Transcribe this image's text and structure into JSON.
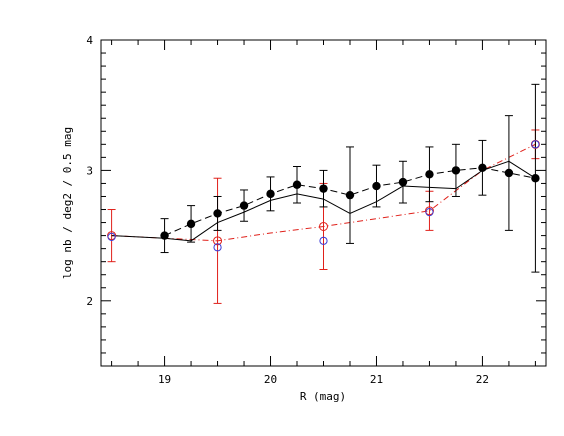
{
  "chart_data": {
    "type": "scatter",
    "title": "",
    "xlabel": "R (mag)",
    "ylabel": "log nb / deg2 / 0.5 mag",
    "xlim": [
      18.4,
      22.6
    ],
    "ylim": [
      1.5,
      4.0
    ],
    "x_ticks": [
      19,
      20,
      21,
      22
    ],
    "y_ticks": [
      2,
      3,
      4
    ],
    "grid": false,
    "colors": {
      "black": "#000000",
      "red": "#e0201a",
      "blue": "#3b3bd6"
    },
    "series": [
      {
        "style": "black filled circles, dashed line, error bars",
        "x": [
          19.0,
          19.25,
          19.5,
          19.75,
          20.0,
          20.25,
          20.5,
          20.75,
          21.0,
          21.25,
          21.5,
          21.75,
          22.0,
          22.25,
          22.5
        ],
        "y": [
          2.5,
          2.59,
          2.67,
          2.73,
          2.82,
          2.89,
          2.86,
          2.81,
          2.88,
          2.91,
          2.97,
          3.0,
          3.02,
          2.98,
          2.94
        ],
        "yerr": [
          0.13,
          0.14,
          0.13,
          0.12,
          0.13,
          0.14,
          0.14,
          0.37,
          0.16,
          0.16,
          0.21,
          0.2,
          0.21,
          0.44,
          0.72
        ]
      },
      {
        "style": "black solid line",
        "x": [
          18.5,
          19.0,
          19.25,
          19.5,
          19.75,
          20.0,
          20.25,
          20.5,
          20.75,
          21.0,
          21.25,
          21.5,
          21.75,
          22.0,
          22.25,
          22.5
        ],
        "y": [
          2.5,
          2.48,
          2.46,
          2.6,
          2.68,
          2.77,
          2.82,
          2.78,
          2.67,
          2.76,
          2.88,
          2.87,
          2.86,
          3.0,
          3.07,
          2.94
        ]
      },
      {
        "style": "red open circles, dash-dot line, error bars",
        "x": [
          18.5,
          19.5,
          20.5,
          21.5,
          22.5
        ],
        "y": [
          2.5,
          2.46,
          2.57,
          2.69,
          3.2
        ],
        "yerr": [
          0.2,
          0.48,
          0.33,
          0.15,
          0.11
        ],
        "line_x": [
          18.5,
          19.0,
          19.5,
          20.0,
          20.5,
          21.0,
          21.5,
          22.0,
          22.5
        ],
        "line_y": [
          2.5,
          2.48,
          2.46,
          2.52,
          2.57,
          2.63,
          2.69,
          3.0,
          3.2
        ]
      },
      {
        "style": "blue open circles",
        "x": [
          18.5,
          19.5,
          20.5,
          21.5,
          22.5
        ],
        "y": [
          2.49,
          2.41,
          2.46,
          2.68,
          3.2
        ]
      }
    ]
  }
}
